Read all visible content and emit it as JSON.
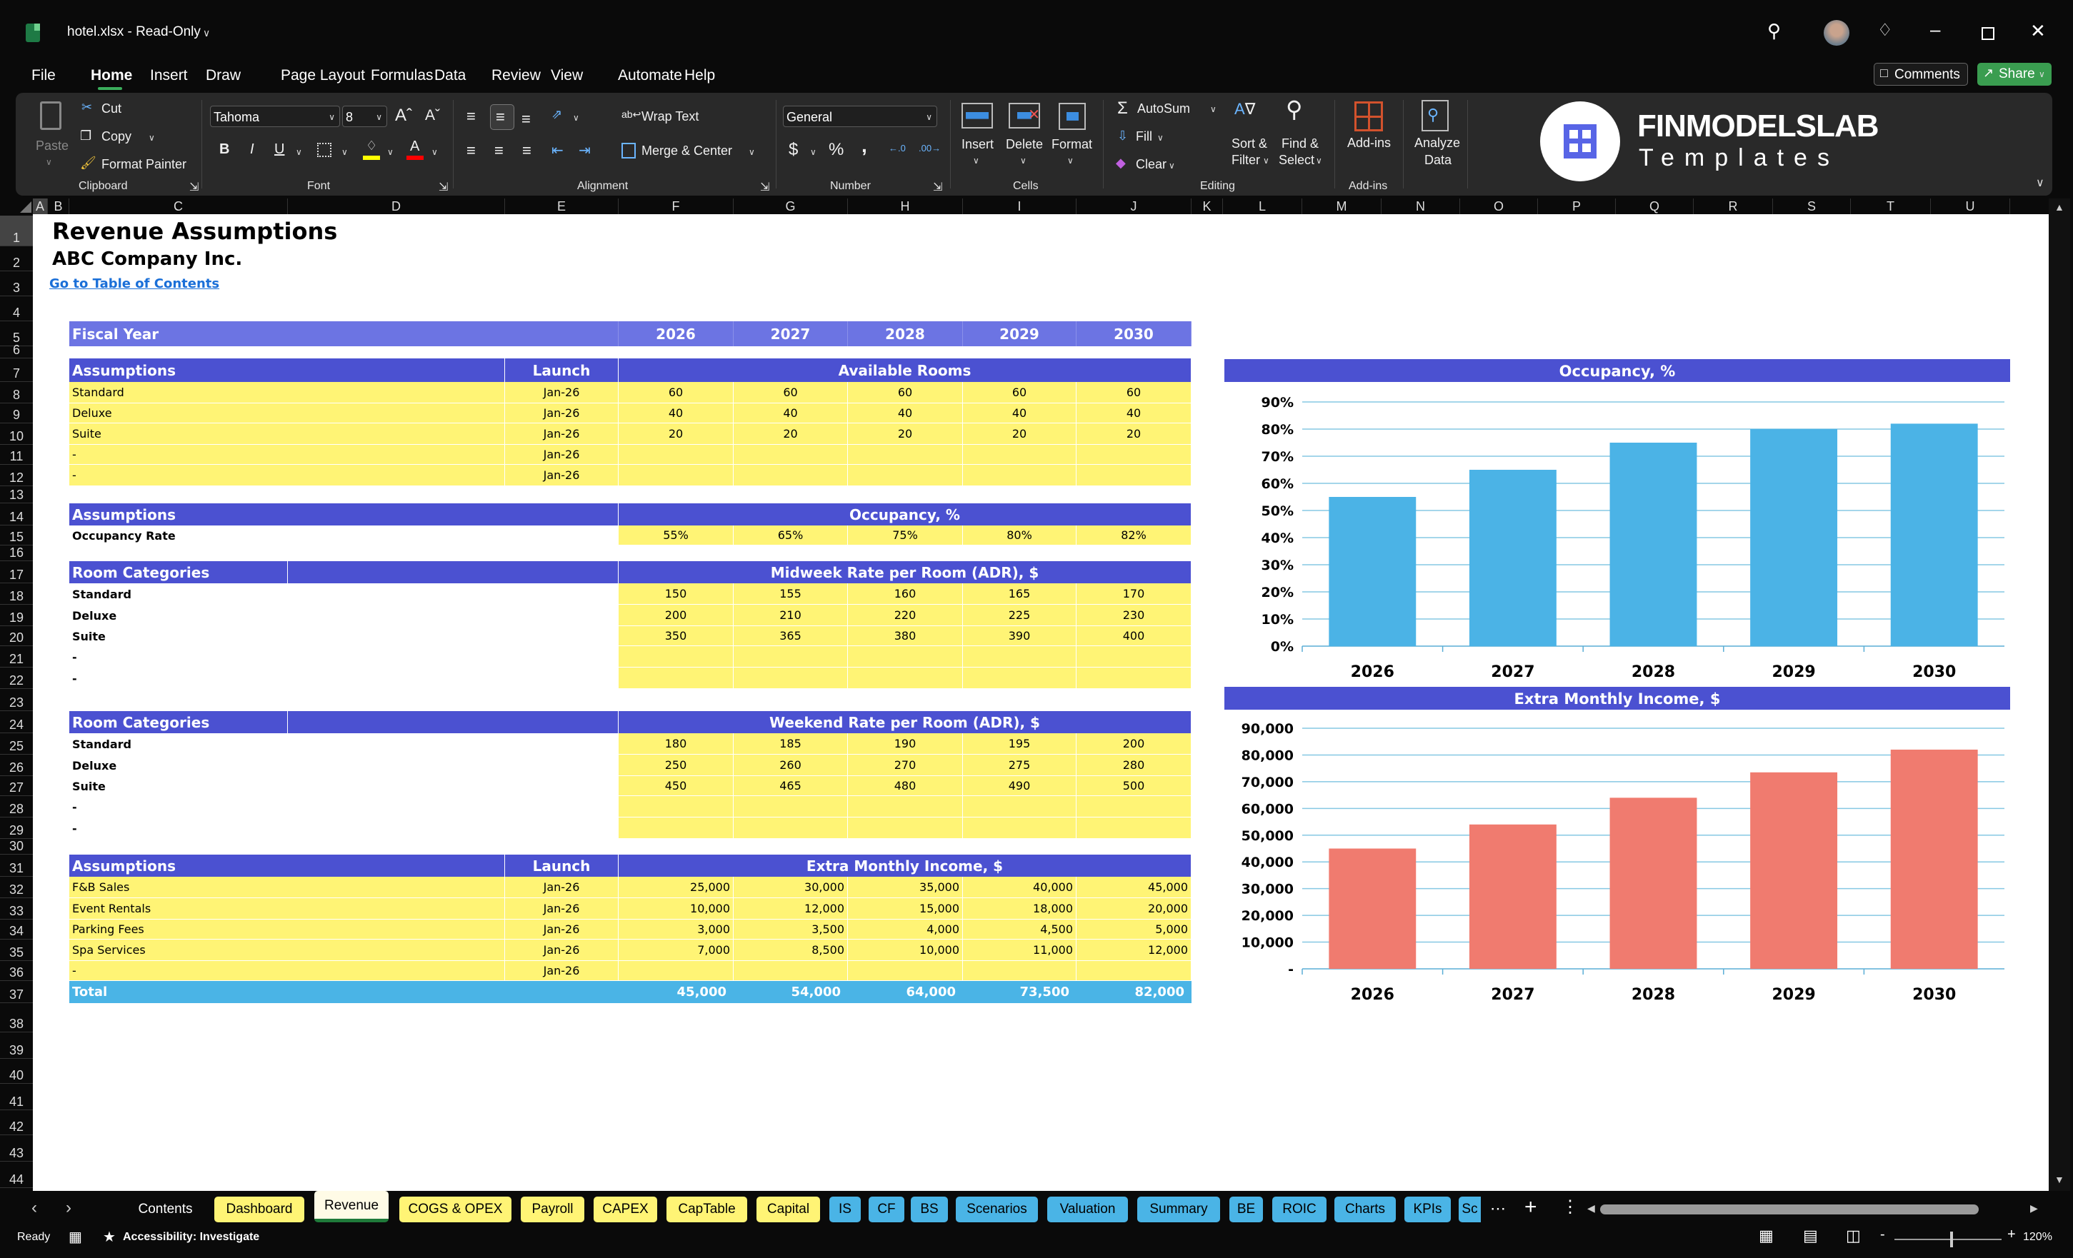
{
  "window": {
    "title": "hotel.xlsx  -  Read-Only",
    "comments_label": "Comments",
    "share_label": "Share"
  },
  "menu": [
    "File",
    "Home",
    "Insert",
    "Draw",
    "Page Layout",
    "Formulas",
    "Data",
    "Review",
    "View",
    "Automate",
    "Help"
  ],
  "active_menu": "Home",
  "ribbon": {
    "clipboard": {
      "paste": "Paste",
      "cut": "Cut",
      "copy": "Copy",
      "format_painter": "Format Painter",
      "label": "Clipboard"
    },
    "font": {
      "family": "Tahoma",
      "size": "8",
      "bold": "B",
      "italic": "I",
      "underline": "U",
      "label": "Font"
    },
    "alignment": {
      "wrap_text": "Wrap Text",
      "merge_center": "Merge & Center",
      "label": "Alignment"
    },
    "number": {
      "format": "General",
      "currency": "$",
      "percent": "%",
      "comma": ",",
      "label": "Number"
    },
    "cells": {
      "insert": "Insert",
      "delete": "Delete",
      "format": "Format",
      "label": "Cells"
    },
    "editing": {
      "autosum": "AutoSum",
      "fill": "Fill",
      "clear": "Clear",
      "sort1": "Sort &",
      "sort2": "Filter",
      "find1": "Find &",
      "find2": "Select",
      "label": "Editing"
    },
    "addins": {
      "addins": "Add-ins",
      "analyze1": "Analyze",
      "analyze2": "Data",
      "label": "Add-ins"
    },
    "logo": {
      "name": "FINMODELSLAB",
      "sub": "Templates"
    }
  },
  "columns": [
    "A",
    "B",
    "C",
    "D",
    "E",
    "F",
    "G",
    "H",
    "I",
    "J",
    "K",
    "L",
    "M",
    "N",
    "O",
    "P",
    "Q",
    "R",
    "S",
    "T",
    "U"
  ],
  "sheet": {
    "title": "Revenue Assumptions",
    "company": "ABC Company Inc.",
    "toc_link": "Go to Table of Contents",
    "fiscal": {
      "label": "Fiscal Year",
      "years": [
        "2026",
        "2027",
        "2028",
        "2029",
        "2030"
      ]
    },
    "rooms": {
      "header": [
        "Assumptions",
        "Launch",
        "Available Rooms"
      ],
      "rows": [
        {
          "label": "Standard",
          "launch": "Jan-26",
          "values": [
            "60",
            "60",
            "60",
            "60",
            "60"
          ]
        },
        {
          "label": "Deluxe",
          "launch": "Jan-26",
          "values": [
            "40",
            "40",
            "40",
            "40",
            "40"
          ]
        },
        {
          "label": "Suite",
          "launch": "Jan-26",
          "values": [
            "20",
            "20",
            "20",
            "20",
            "20"
          ]
        },
        {
          "label": "-",
          "launch": "Jan-26",
          "values": [
            "",
            "",
            "",
            "",
            ""
          ]
        },
        {
          "label": "-",
          "launch": "Jan-26",
          "values": [
            "",
            "",
            "",
            "",
            ""
          ]
        }
      ]
    },
    "occupancy": {
      "header": [
        "Assumptions",
        "Occupancy, %"
      ],
      "rows": [
        {
          "label": "Occupancy Rate",
          "values": [
            "55%",
            "65%",
            "75%",
            "80%",
            "82%"
          ]
        }
      ]
    },
    "midweek": {
      "header": [
        "Room Categories",
        "Midweek Rate per Room (ADR), $"
      ],
      "rows": [
        {
          "label": "Standard",
          "values": [
            "150",
            "155",
            "160",
            "165",
            "170"
          ]
        },
        {
          "label": "Deluxe",
          "values": [
            "200",
            "210",
            "220",
            "225",
            "230"
          ]
        },
        {
          "label": "Suite",
          "values": [
            "350",
            "365",
            "380",
            "390",
            "400"
          ]
        },
        {
          "label": "-",
          "values": [
            "",
            "",
            "",
            "",
            ""
          ]
        },
        {
          "label": "-",
          "values": [
            "",
            "",
            "",
            "",
            ""
          ]
        }
      ]
    },
    "weekend": {
      "header": [
        "Room Categories",
        "Weekend Rate per Room (ADR), $"
      ],
      "rows": [
        {
          "label": "Standard",
          "values": [
            "180",
            "185",
            "190",
            "195",
            "200"
          ]
        },
        {
          "label": "Deluxe",
          "values": [
            "250",
            "260",
            "270",
            "275",
            "280"
          ]
        },
        {
          "label": "Suite",
          "values": [
            "450",
            "465",
            "480",
            "490",
            "500"
          ]
        },
        {
          "label": "-",
          "values": [
            "",
            "",
            "",
            "",
            ""
          ]
        },
        {
          "label": "-",
          "values": [
            "",
            "",
            "",
            "",
            ""
          ]
        }
      ]
    },
    "extra": {
      "header": [
        "Assumptions",
        "Launch",
        "Extra Monthly Income, $"
      ],
      "rows": [
        {
          "label": "F&B Sales",
          "launch": "Jan-26",
          "values": [
            "25,000",
            "30,000",
            "35,000",
            "40,000",
            "45,000"
          ]
        },
        {
          "label": "Event Rentals",
          "launch": "Jan-26",
          "values": [
            "10,000",
            "12,000",
            "15,000",
            "18,000",
            "20,000"
          ]
        },
        {
          "label": "Parking Fees",
          "launch": "Jan-26",
          "values": [
            "3,000",
            "3,500",
            "4,000",
            "4,500",
            "5,000"
          ]
        },
        {
          "label": "Spa Services",
          "launch": "Jan-26",
          "values": [
            "7,000",
            "8,500",
            "10,000",
            "11,000",
            "12,000"
          ]
        },
        {
          "label": "-",
          "launch": "Jan-26",
          "values": [
            "",
            "",
            "",
            "",
            ""
          ]
        }
      ],
      "total": {
        "label": "Total",
        "values": [
          "45,000",
          "54,000",
          "64,000",
          "73,500",
          "82,000"
        ]
      }
    }
  },
  "chart_data": [
    {
      "type": "bar",
      "title": "Occupancy, %",
      "categories": [
        "2026",
        "2027",
        "2028",
        "2029",
        "2030"
      ],
      "values": [
        55,
        65,
        75,
        80,
        82
      ],
      "ylim": [
        0,
        90
      ],
      "yticks": [
        "0%",
        "10%",
        "20%",
        "30%",
        "40%",
        "50%",
        "60%",
        "70%",
        "80%",
        "90%"
      ],
      "grid": true,
      "color": "#4bb3e6"
    },
    {
      "type": "bar",
      "title": "Extra Monthly Income, $",
      "categories": [
        "2026",
        "2027",
        "2028",
        "2029",
        "2030"
      ],
      "values": [
        45000,
        54000,
        64000,
        73500,
        82000
      ],
      "ylim": [
        0,
        90000
      ],
      "yticks": [
        "-",
        "10,000",
        "20,000",
        "30,000",
        "40,000",
        "50,000",
        "60,000",
        "70,000",
        "80,000",
        "90,000"
      ],
      "grid": true,
      "color": "#f07b6f"
    }
  ],
  "tabs": [
    {
      "label": "Contents",
      "color": "none"
    },
    {
      "label": "Dashboard",
      "color": "yellow"
    },
    {
      "label": "Revenue",
      "color": "active"
    },
    {
      "label": "COGS & OPEX",
      "color": "yellow"
    },
    {
      "label": "Payroll",
      "color": "yellow"
    },
    {
      "label": "CAPEX",
      "color": "yellow"
    },
    {
      "label": "CapTable",
      "color": "yellow"
    },
    {
      "label": "Capital",
      "color": "yellow"
    },
    {
      "label": "IS",
      "color": "blue"
    },
    {
      "label": "CF",
      "color": "blue"
    },
    {
      "label": "BS",
      "color": "blue"
    },
    {
      "label": "Scenarios",
      "color": "blue"
    },
    {
      "label": "Valuation",
      "color": "blue"
    },
    {
      "label": "Summary",
      "color": "blue"
    },
    {
      "label": "BE",
      "color": "blue"
    },
    {
      "label": "ROIC",
      "color": "blue"
    },
    {
      "label": "Charts",
      "color": "blue"
    },
    {
      "label": "KPIs",
      "color": "blue"
    },
    {
      "label": "Sc",
      "color": "blue"
    }
  ],
  "status": {
    "ready": "Ready",
    "accessibility": "Accessibility: Investigate",
    "zoom": "120%"
  },
  "colors": {
    "header": "#4b51d1",
    "fiscal": "#6c74e3",
    "input_yellow": "#fff475",
    "total": "#4ab4e6",
    "share_green": "#3a9d50"
  }
}
